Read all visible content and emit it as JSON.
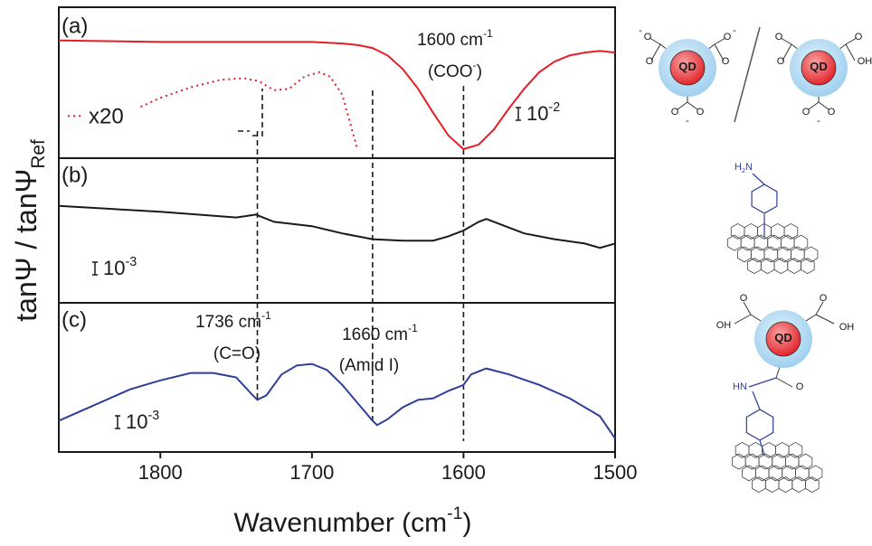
{
  "chart_data": {
    "type": "line",
    "xlim": [
      1867,
      1500
    ],
    "xticks": [
      1800,
      1700,
      1600,
      1500
    ],
    "x_label": {
      "text": "Wavenumber (cm",
      "sup": "-1",
      "end": ")"
    },
    "y_label": {
      "text": "tanΨ / tanΨ",
      "sub": "Ref"
    },
    "guides": [
      1736,
      1660,
      1600
    ],
    "panels": [
      {
        "label": "(a)",
        "ylim": [
          0,
          100
        ],
        "series": [
          {
            "color": "#e41e26",
            "style": "solid",
            "x": [
              1867,
              1800,
              1750,
              1700,
              1680,
              1670,
              1660,
              1650,
              1640,
              1630,
              1620,
              1610,
              1600,
              1590,
              1580,
              1570,
              1560,
              1550,
              1540,
              1530,
              1520,
              1510,
              1500
            ],
            "values": [
              78,
              77,
              77,
              77,
              76,
              75,
              73,
              68,
              59,
              46,
              30,
              15,
              6,
              9,
              19,
              33,
              46,
              57,
              64,
              68,
              70,
              71,
              70
            ]
          },
          {
            "color": "#e41e26",
            "style": "dotted",
            "label": "x20",
            "x": [
              1861,
              1852,
              1835,
              1813,
              1800,
              1780,
              1760,
              1745,
              1735,
              1725,
              1715,
              1705,
              1695,
              1688,
              1680,
              1675,
              1670
            ],
            "values": [
              28,
              28,
              null,
              34,
              40,
              47,
              52,
              53,
              51,
              45,
              46,
              54,
              57,
              54,
              42,
              24,
              6
            ]
          }
        ],
        "scalebar": {
          "text": "10",
          "sup": "-2"
        },
        "annotations": [
          {
            "text": "1600 cm",
            "sup": "-1"
          },
          {
            "text": "(COO",
            "sup": "-",
            "end": ")"
          }
        ]
      },
      {
        "label": "(b)",
        "ylim": [
          0,
          100
        ],
        "series": [
          {
            "color": "#1a1a1a",
            "style": "solid",
            "x": [
              1867,
              1800,
              1750,
              1737,
              1725,
              1700,
              1680,
              1660,
              1640,
              1620,
              1610,
              1600,
              1590,
              1585,
              1575,
              1560,
              1540,
              1520,
              1510,
              1500
            ],
            "values": [
              67,
              63,
              59,
              61,
              56,
              53,
              48,
              44,
              43,
              43,
              46,
              50,
              56,
              58,
              54,
              48,
              44,
              41,
              38,
              41
            ]
          }
        ],
        "scalebar": {
          "text": "10",
          "sup": "-3"
        }
      },
      {
        "label": "(c)",
        "ylim": [
          0,
          100
        ],
        "series": [
          {
            "color": "#2d3e9a",
            "style": "solid",
            "x": [
              1867,
              1840,
              1820,
              1800,
              1780,
              1765,
              1750,
              1740,
              1736,
              1730,
              1720,
              1710,
              1700,
              1690,
              1680,
              1670,
              1660,
              1657,
              1650,
              1640,
              1630,
              1620,
              1610,
              1600,
              1595,
              1585,
              1570,
              1550,
              1530,
              1510,
              1500
            ],
            "values": [
              21,
              33,
              42,
              48,
              53,
              53,
              50,
              39,
              35,
              38,
              52,
              58,
              59,
              55,
              45,
              33,
              21,
              18,
              22,
              30,
              35,
              36,
              41,
              45,
              52,
              56,
              52,
              45,
              36,
              24,
              9
            ]
          }
        ],
        "scalebar": {
          "text": "10",
          "sup": "-3"
        },
        "annotations": [
          {
            "text": "1736 cm",
            "sup": "-1"
          },
          {
            "text": "(C=O)"
          },
          {
            "text": "1660 cm",
            "sup": "-1"
          },
          {
            "text": "(Amid I)"
          }
        ]
      }
    ]
  },
  "molecules": {
    "a": [
      "O",
      "O",
      "-",
      "O",
      "O",
      "-",
      "O",
      "O",
      "-",
      "QD",
      "O",
      "O",
      "O",
      "OH",
      "O",
      "O",
      "-",
      "QD"
    ],
    "b": [
      {
        "text": "H",
        "sub": "2",
        "end": "N"
      }
    ],
    "c": [
      "OH",
      "O",
      "O",
      "OH",
      "QD",
      "HN",
      "O"
    ]
  }
}
